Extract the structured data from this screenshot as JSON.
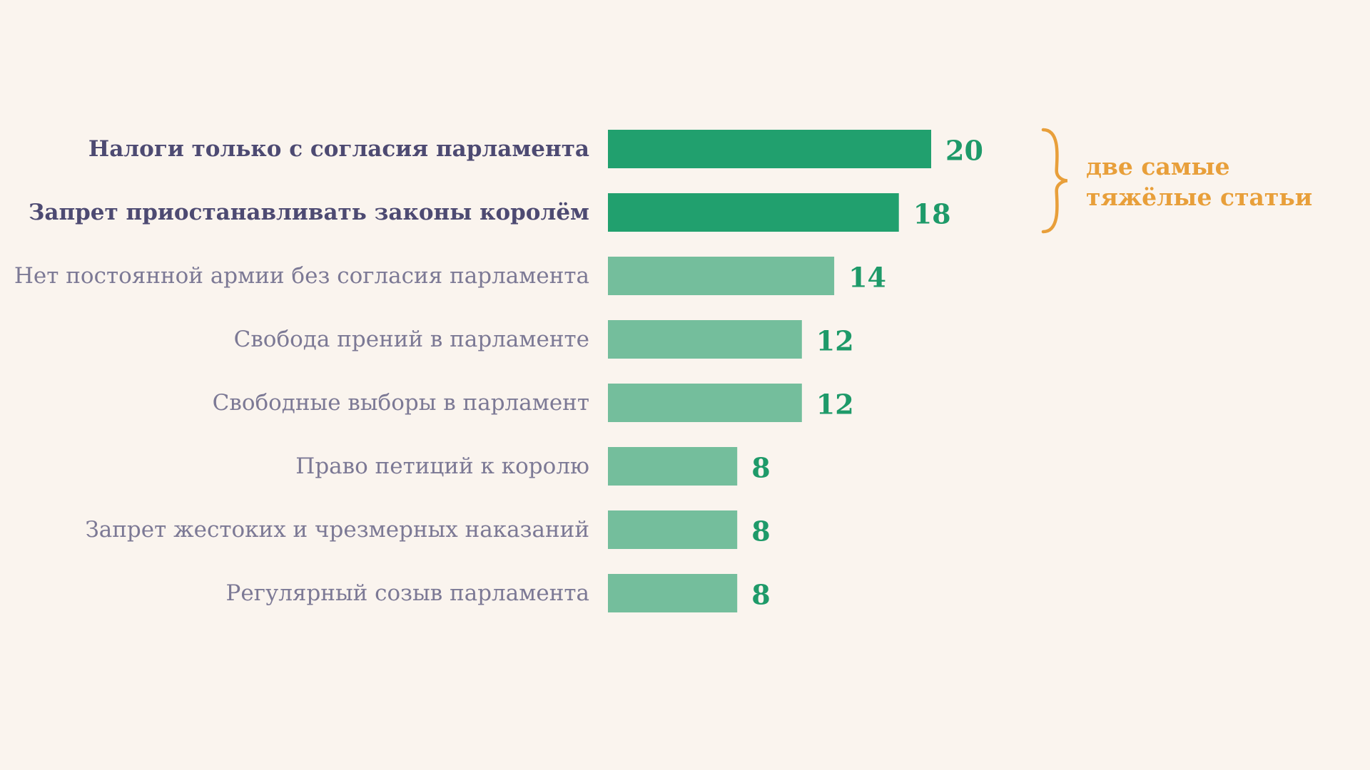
{
  "chart_data": {
    "type": "bar",
    "orientation": "horizontal",
    "categories": [
      "Налоги только с согласия парламента",
      "Запрет приостанавливать законы королём",
      "Нет постоянной армии без согласия парламента",
      "Свобода прений в парламенте",
      "Свободные выборы в парламент",
      "Право петиций к королю",
      "Запрет жестоких и чрезмерных наказаний",
      "Регулярный созыв парламента"
    ],
    "values": [
      20,
      18,
      14,
      12,
      12,
      8,
      8,
      8
    ],
    "highlighted": [
      true,
      true,
      false,
      false,
      false,
      false,
      false,
      false
    ],
    "xlim": [
      0,
      20
    ],
    "grid": false,
    "legend": "none",
    "annotation": {
      "lines": [
        "две самые",
        "тяжёлые статьи"
      ],
      "applies_to": [
        0,
        1
      ]
    }
  },
  "colors": {
    "background": "#FAF4EE",
    "bar_highlight": "#21A06E",
    "bar_normal": "#74BE9C",
    "label_highlight": "#4D4A72",
    "label_normal": "#7C7995",
    "value_text": "#1E9A69",
    "annotation": "#E89F3A"
  }
}
